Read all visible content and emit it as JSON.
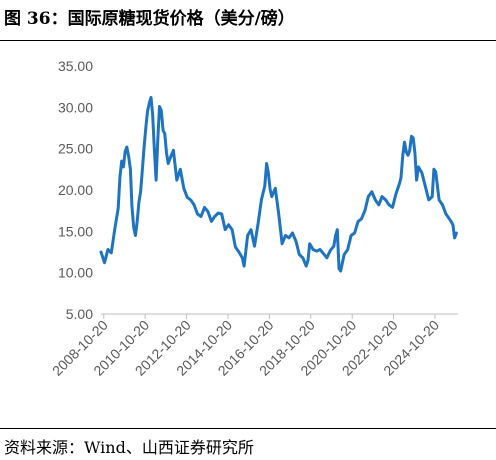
{
  "title": "图 36：国际原糖现货价格（美分/磅）",
  "source": "资料来源：Wind、山西证券研究所",
  "chart_data": {
    "type": "line",
    "title": "",
    "xlabel": "",
    "ylabel": "",
    "ylim": [
      5,
      35
    ],
    "yticks": [
      "35.00",
      "30.00",
      "25.00",
      "20.00",
      "15.00",
      "10.00",
      "5.00"
    ],
    "xticks": [
      "2008-10-20",
      "2010-10-20",
      "2012-10-20",
      "2014-10-20",
      "2016-10-20",
      "2018-10-20",
      "2020-10-20",
      "2022-10-20",
      "2024-10-20"
    ],
    "xlim": [
      "2008-09-01",
      "2025-11-30"
    ],
    "grid": false,
    "legend": "none",
    "line_color": "#1f74c2",
    "series": [
      {
        "x": [
          "2008-09-01",
          "2008-11-01",
          "2009-01-01",
          "2009-03-01",
          "2009-05-01",
          "2009-07-01",
          "2009-08-01",
          "2009-09-01",
          "2009-10-01",
          "2009-11-01",
          "2009-12-01",
          "2010-01-01",
          "2010-02-01",
          "2010-03-01",
          "2010-04-01",
          "2010-05-01",
          "2010-06-01",
          "2010-07-01",
          "2010-08-01",
          "2010-09-01",
          "2010-10-01",
          "2010-11-01",
          "2010-12-01",
          "2011-01-01",
          "2011-02-01",
          "2011-03-01",
          "2011-04-01",
          "2011-05-01",
          "2011-06-01",
          "2011-07-01",
          "2011-08-01",
          "2011-09-01",
          "2011-10-01",
          "2011-11-01",
          "2011-12-01",
          "2012-01-01",
          "2012-03-01",
          "2012-05-01",
          "2012-07-01",
          "2012-09-01",
          "2012-11-01",
          "2013-01-01",
          "2013-03-01",
          "2013-05-01",
          "2013-07-01",
          "2013-09-01",
          "2013-11-01",
          "2014-01-01",
          "2014-03-01",
          "2014-05-01",
          "2014-07-01",
          "2014-09-01",
          "2014-11-01",
          "2015-01-01",
          "2015-03-01",
          "2015-05-01",
          "2015-07-01",
          "2015-08-01",
          "2015-10-01",
          "2015-12-01",
          "2016-02-01",
          "2016-04-01",
          "2016-06-01",
          "2016-08-01",
          "2016-09-01",
          "2016-10-01",
          "2016-11-01",
          "2016-12-01",
          "2017-02-01",
          "2017-04-01",
          "2017-06-01",
          "2017-08-01",
          "2017-10-01",
          "2017-12-01",
          "2018-02-01",
          "2018-04-01",
          "2018-06-01",
          "2018-08-01",
          "2018-09-01",
          "2018-10-01",
          "2018-12-01",
          "2019-02-01",
          "2019-04-01",
          "2019-06-01",
          "2019-08-01",
          "2019-10-01",
          "2019-12-01",
          "2020-01-01",
          "2020-02-01",
          "2020-03-01",
          "2020-04-01",
          "2020-05-01",
          "2020-06-01",
          "2020-08-01",
          "2020-10-01",
          "2020-12-01",
          "2021-02-01",
          "2021-04-01",
          "2021-06-01",
          "2021-08-01",
          "2021-10-01",
          "2021-12-01",
          "2022-02-01",
          "2022-04-01",
          "2022-06-01",
          "2022-08-01",
          "2022-10-01",
          "2022-12-01",
          "2023-02-01",
          "2023-03-01",
          "2023-04-01",
          "2023-05-01",
          "2023-06-01",
          "2023-07-01",
          "2023-08-01",
          "2023-09-01",
          "2023-10-01",
          "2023-11-01",
          "2023-12-01",
          "2024-01-01",
          "2024-03-01",
          "2024-05-01",
          "2024-07-01",
          "2024-09-01",
          "2024-10-01",
          "2024-11-01",
          "2025-01-01",
          "2025-03-01",
          "2025-05-01",
          "2025-07-01",
          "2025-09-01",
          "2025-10-01",
          "2025-11-01"
        ],
        "y": [
          12.5,
          11.2,
          12.8,
          12.4,
          15.2,
          17.8,
          21.5,
          23.5,
          22.8,
          24.6,
          25.2,
          24.1,
          22.5,
          18.1,
          15.5,
          14.5,
          16.2,
          18.5,
          19.8,
          22.5,
          25.2,
          27.5,
          29.5,
          30.5,
          31.2,
          29.2,
          24.8,
          21.2,
          26.1,
          30.1,
          29.6,
          27.2,
          26.8,
          24.5,
          23.2,
          23.8,
          24.8,
          21.2,
          22.5,
          20.2,
          19.1,
          18.8,
          18.2,
          17.1,
          16.8,
          17.9,
          17.4,
          16.2,
          16.8,
          17.2,
          17.1,
          15.2,
          15.8,
          15.2,
          13.1,
          12.5,
          11.8,
          10.8,
          14.5,
          15.2,
          13.2,
          15.8,
          18.8,
          20.5,
          23.2,
          22.1,
          20.1,
          19.2,
          20.2,
          17.2,
          13.5,
          14.5,
          14.2,
          14.8,
          13.8,
          12.2,
          11.8,
          10.8,
          11.5,
          13.5,
          12.8,
          12.6,
          12.8,
          12.3,
          11.8,
          12.7,
          13.2,
          14.5,
          15.2,
          10.5,
          10.2,
          11.2,
          12.2,
          12.8,
          14.5,
          14.8,
          16.2,
          16.5,
          17.5,
          19.2,
          19.8,
          18.8,
          18.2,
          19.2,
          18.8,
          18.2,
          17.9,
          19.5,
          20.8,
          21.5,
          24.2,
          25.8,
          24.6,
          24.2,
          24.8,
          26.5,
          26.3,
          24.5,
          21.2,
          22.8,
          22.1,
          20.5,
          18.8,
          19.2,
          22.5,
          22.2,
          18.8,
          18.2,
          17.1,
          16.5,
          15.8,
          14.2,
          14.8
        ]
      }
    ]
  }
}
